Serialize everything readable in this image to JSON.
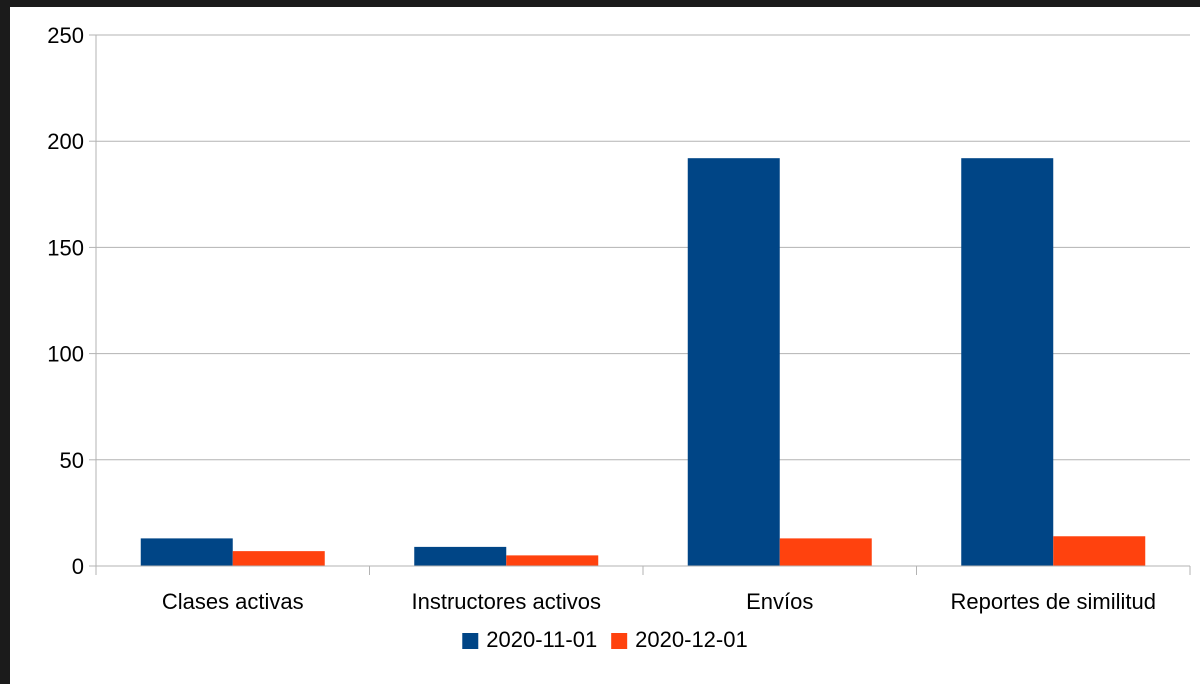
{
  "chart_data": {
    "type": "bar",
    "title": "",
    "xlabel": "",
    "ylabel": "",
    "categories": [
      "Clases activas",
      "Instructores activos",
      "Envíos",
      "Reportes de similitud"
    ],
    "series": [
      {
        "name": "2020-11-01",
        "color": "#004586",
        "values": [
          13,
          9,
          192,
          192
        ]
      },
      {
        "name": "2020-12-01",
        "color": "#ff420e",
        "values": [
          7,
          5,
          13,
          14
        ]
      }
    ],
    "ylim": [
      0,
      250
    ],
    "yticks": [
      0,
      50,
      100,
      150,
      200,
      250
    ],
    "grid": true,
    "legend_position": "bottom"
  }
}
